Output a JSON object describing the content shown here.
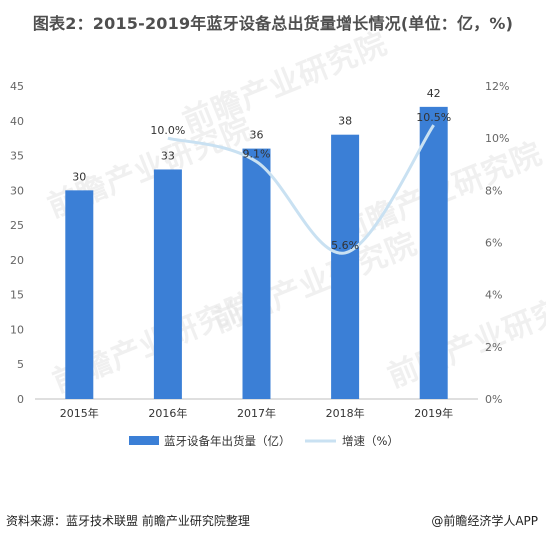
{
  "title": "图表2：2015-2019年蓝牙设备总出货量增长情况(单位：亿，%)",
  "footer": {
    "source": "资料来源：蓝牙技术联盟 前瞻产业研究院整理",
    "brand": "@前瞻经济学人APP"
  },
  "watermark": "前瞻产业研究院",
  "colors": {
    "bar": "#3b7fd6",
    "line": "#c9e1f2",
    "axis": "#666666"
  },
  "chart_data": {
    "type": "bar",
    "categories": [
      "2015年",
      "2016年",
      "2017年",
      "2018年",
      "2019年"
    ],
    "series": [
      {
        "name": "蓝牙设备年出货量（亿）",
        "type": "bar",
        "axis": "left",
        "values": [
          30,
          33,
          36,
          38,
          42
        ],
        "labels": [
          "30",
          "33",
          "36",
          "38",
          "42"
        ]
      },
      {
        "name": "增速（%）",
        "type": "line",
        "axis": "right",
        "values": [
          null,
          10.0,
          9.1,
          5.6,
          10.5
        ],
        "labels": [
          "",
          "10.0%",
          "9.1%",
          "5.6%",
          "10.5%"
        ]
      }
    ],
    "y_left": {
      "min": 0,
      "max": 45,
      "ticks": [
        "0",
        "5",
        "10",
        "15",
        "20",
        "25",
        "30",
        "35",
        "40",
        "45"
      ]
    },
    "y_right": {
      "min": 0,
      "max": 12,
      "ticks": [
        "0%",
        "2%",
        "4%",
        "6%",
        "8%",
        "10%",
        "12%"
      ]
    },
    "legend": "bottom"
  }
}
